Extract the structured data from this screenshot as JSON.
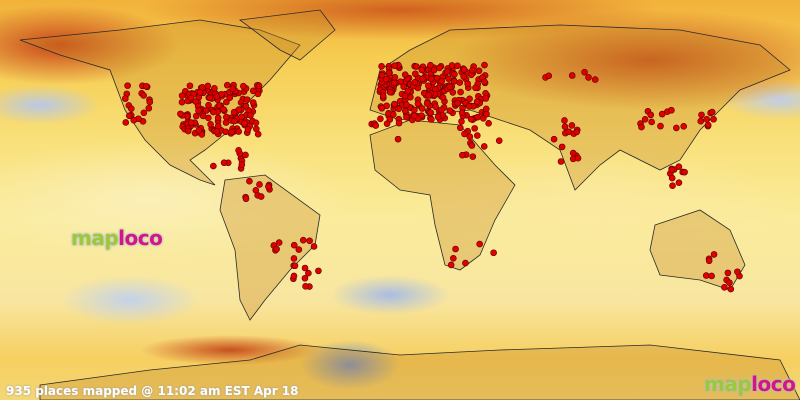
{
  "status_text": "935 places mapped @ 11:02 am EST Apr 18",
  "places_count": 935,
  "logo": {
    "part1": "map",
    "part2": "loco"
  },
  "colors": {
    "marker": "#e00000",
    "logo_green": "#9bc93c",
    "logo_magenta": "#d0168a",
    "warm": "#c8441a",
    "cool": "#6f8fd0"
  },
  "marker_icon": "red-circle-marker"
}
